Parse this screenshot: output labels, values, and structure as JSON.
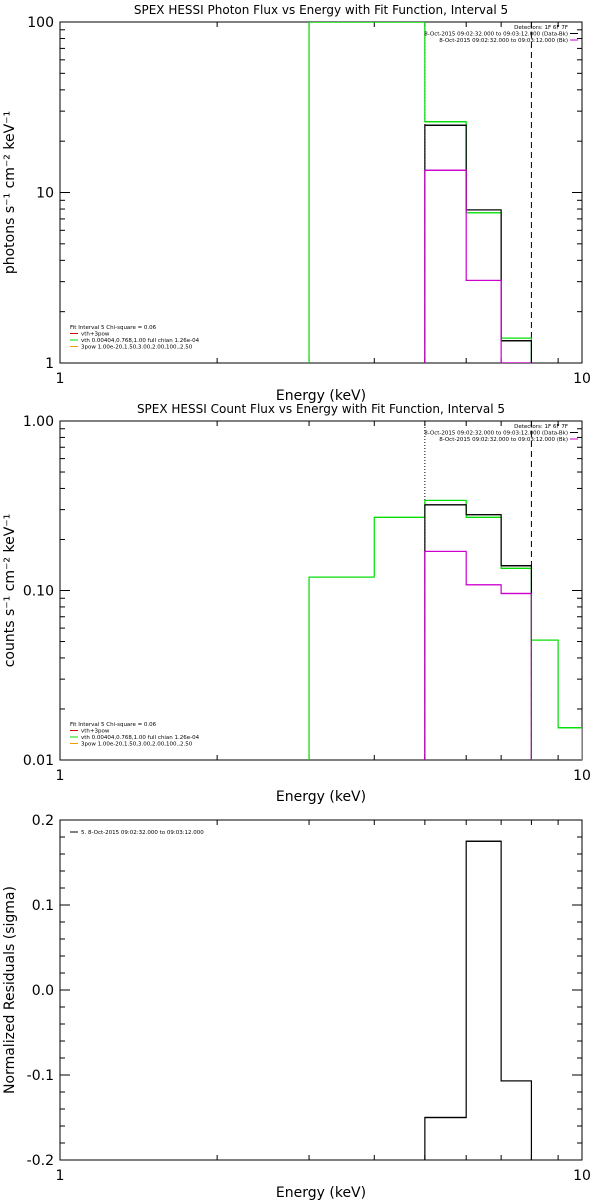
{
  "colors": {
    "black": "#000000",
    "magenta": "#cc00cc",
    "green": "#00dd00",
    "red": "#d40000",
    "orange": "#e8a000",
    "background": "#ffffff"
  },
  "chart_data": [
    {
      "type": "line",
      "title": "SPEX HESSI Photon Flux vs Energy with Fit Function, Interval 5",
      "xlabel": "Energy (keV)",
      "ylabel": "photons s⁻¹ cm⁻² keV⁻¹",
      "xscale": "log",
      "yscale": "log",
      "xlim": [
        1,
        10
      ],
      "ylim": [
        1,
        100
      ],
      "xticks": [
        1,
        10
      ],
      "xtick_labels": [
        "1",
        "10"
      ],
      "yticks": [
        1,
        10,
        100
      ],
      "ytick_labels": [
        "1",
        "10",
        "100"
      ],
      "vlines": [
        {
          "x": 5.0,
          "style": "dotted",
          "color": "black"
        },
        {
          "x": 8.0,
          "style": "dashed",
          "color": "black"
        }
      ],
      "header": {
        "lines": [
          "Detectors: 1F 6F 7F",
          "8-Oct-2015 09:02:32.000 to 09:03:12.000 (Data-Bk)",
          "8-Oct-2015 09:02:32.000 to 09:03:12.000 (Bk)"
        ],
        "colors": [
          "#000000",
          "#000000",
          "#cc00cc"
        ]
      },
      "legend": {
        "position": "bottom-left",
        "lines": [
          "Fit Interval 5   Chi-square = 0.06",
          "vth+3pow",
          "vth 0.00404,0.768,1.00  full chian 1.26e-04",
          "3pow 1.00e-20,1.50,3.00,2.00,100.,2.50"
        ],
        "colors": [
          "#000000",
          "#d40000",
          "#00dd00",
          "#e8a000"
        ]
      },
      "series": [
        {
          "color": "#00dd00",
          "edges": [
            3,
            5,
            6,
            7,
            8
          ],
          "values": [
            100,
            26.0,
            7.6,
            1.4
          ]
        },
        {
          "color": "#000000",
          "edges": [
            5,
            6,
            7,
            8
          ],
          "values": [
            24.8,
            7.9,
            1.35
          ]
        },
        {
          "color": "#cc00cc",
          "edges": [
            5,
            6,
            7,
            8
          ],
          "values": [
            13.5,
            3.05,
            1.0
          ]
        }
      ]
    },
    {
      "type": "line",
      "title": "SPEX HESSI Count Flux vs Energy with Fit Function, Interval 5",
      "xlabel": "Energy (keV)",
      "ylabel": "counts s⁻¹ cm⁻² keV⁻¹",
      "xscale": "log",
      "yscale": "log",
      "xlim": [
        1,
        10
      ],
      "ylim": [
        0.01,
        1.0
      ],
      "xticks": [
        1,
        10
      ],
      "xtick_labels": [
        "1",
        "10"
      ],
      "yticks": [
        0.01,
        0.1,
        1.0
      ],
      "ytick_labels": [
        "0.01",
        "0.10",
        "1.00"
      ],
      "vlines": [
        {
          "x": 5.0,
          "style": "dotted",
          "color": "black"
        },
        {
          "x": 8.0,
          "style": "dashed",
          "color": "black"
        }
      ],
      "header": {
        "lines": [
          "Detectors: 1F 6F 7F",
          "8-Oct-2015 09:02:32.000 to 09:03:12.000 (Data-Bk)",
          "8-Oct-2015 09:02:32.000 to 09:03:12.000 (Bk)"
        ],
        "colors": [
          "#000000",
          "#000000",
          "#cc00cc"
        ]
      },
      "legend": {
        "position": "bottom-left",
        "lines": [
          "Fit Interval 5   Chi-square = 0.06",
          "vth+3pow",
          "vth 0.00404,0.768,1.00  full chian 1.26e-04",
          "3pow 1.00e-20,1.50,3.00,2.00,100.,2.50"
        ],
        "colors": [
          "#000000",
          "#d40000",
          "#00dd00",
          "#e8a000"
        ]
      },
      "series": [
        {
          "color": "#00dd00",
          "edges": [
            3,
            4,
            5,
            6,
            7,
            8,
            9,
            10
          ],
          "values": [
            0.12,
            0.27,
            0.34,
            0.27,
            0.135,
            0.051,
            0.0155
          ]
        },
        {
          "color": "#000000",
          "edges": [
            5,
            6,
            7,
            8
          ],
          "values": [
            0.32,
            0.28,
            0.14
          ]
        },
        {
          "color": "#cc00cc",
          "edges": [
            5,
            6,
            7,
            8
          ],
          "values": [
            0.17,
            0.108,
            0.096
          ]
        }
      ]
    },
    {
      "type": "line",
      "title": "",
      "xlabel": "Energy (keV)",
      "ylabel": "Normalized Residuals (sigma)",
      "xscale": "log",
      "yscale": "linear",
      "xlim": [
        1,
        10
      ],
      "ylim": [
        -0.2,
        0.2
      ],
      "xticks": [
        1,
        10
      ],
      "xtick_labels": [
        "1",
        "10"
      ],
      "yticks": [
        -0.2,
        -0.1,
        0.0,
        0.1,
        0.2
      ],
      "ytick_labels": [
        "-0.2",
        "-0.1",
        "0.0",
        "0.1",
        "0.2"
      ],
      "vlines": [],
      "legend": {
        "position": "top-left",
        "lines": [
          "5.  8-Oct-2015 09:02:32.000 to 09:03:12.000"
        ],
        "colors": [
          "#000000"
        ]
      },
      "series": [
        {
          "color": "#000000",
          "edges": [
            5,
            6,
            7,
            8
          ],
          "values": [
            -0.15,
            0.175,
            -0.107
          ]
        }
      ]
    }
  ]
}
